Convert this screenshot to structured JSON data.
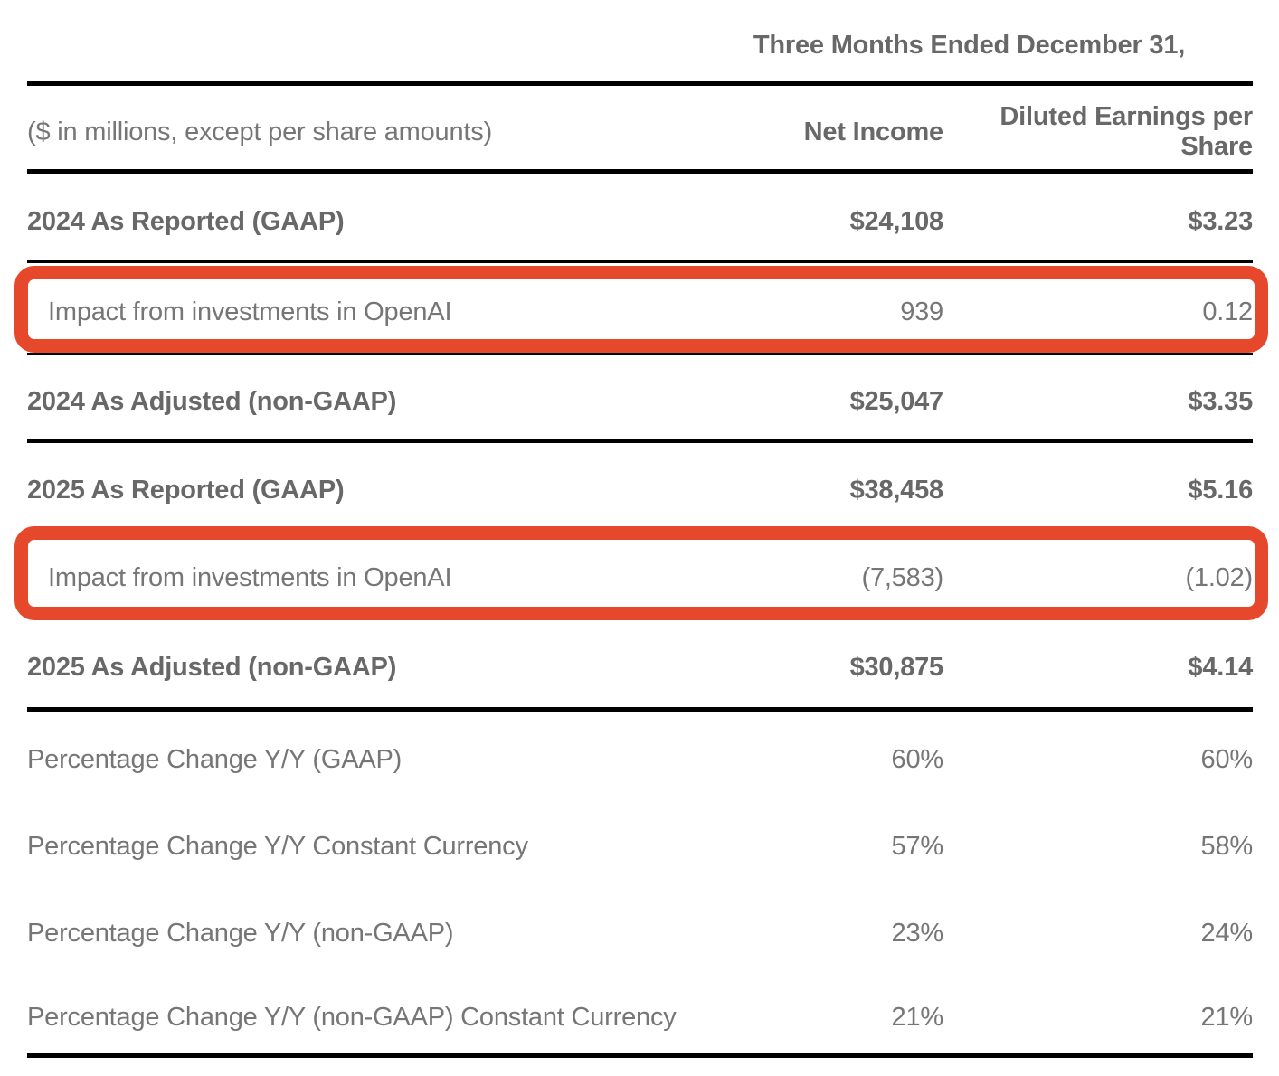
{
  "table": {
    "period_header": "Three Months Ended December 31,",
    "units_note": "($ in millions, except per share amounts)",
    "columns": [
      {
        "label": "Net Income"
      },
      {
        "label": "Diluted Earnings per Share"
      }
    ],
    "rows": [
      {
        "label": "2024 As Reported (GAAP)",
        "net_income": "$24,108",
        "eps": "$3.23",
        "emphasis": "bold",
        "indented": false,
        "highlighted": false
      },
      {
        "label": "Impact from investments in OpenAI",
        "net_income": "939",
        "eps": "0.12",
        "emphasis": "regular",
        "indented": true,
        "highlighted": true
      },
      {
        "label": "2024 As Adjusted (non-GAAP)",
        "net_income": "$25,047",
        "eps": "$3.35",
        "emphasis": "bold",
        "indented": false,
        "highlighted": false
      },
      {
        "label": "2025 As Reported (GAAP)",
        "net_income": "$38,458",
        "eps": "$5.16",
        "emphasis": "bold",
        "indented": false,
        "highlighted": false
      },
      {
        "label": "Impact from investments in OpenAI",
        "net_income": "(7,583)",
        "eps": "(1.02)",
        "emphasis": "regular",
        "indented": true,
        "highlighted": true
      },
      {
        "label": "2025 As Adjusted (non-GAAP)",
        "net_income": "$30,875",
        "eps": "$4.14",
        "emphasis": "bold",
        "indented": false,
        "highlighted": false
      },
      {
        "label": "Percentage Change Y/Y (GAAP)",
        "net_income": "60%",
        "eps": "60%",
        "emphasis": "regular",
        "indented": false,
        "highlighted": false
      },
      {
        "label": "Percentage Change Y/Y Constant Currency",
        "net_income": "57%",
        "eps": "58%",
        "emphasis": "regular",
        "indented": false,
        "highlighted": false
      },
      {
        "label": "Percentage Change Y/Y (non-GAAP)",
        "net_income": "23%",
        "eps": "24%",
        "emphasis": "regular",
        "indented": false,
        "highlighted": false
      },
      {
        "label": "Percentage Change Y/Y (non-GAAP) Constant Currency",
        "net_income": "21%",
        "eps": "21%",
        "emphasis": "regular",
        "indented": false,
        "highlighted": false
      }
    ]
  },
  "colors": {
    "highlight": "#E6482C",
    "rule": "#000000",
    "text_strong": "#686868",
    "text_light": "#767676",
    "background": "#FFFFFF"
  }
}
